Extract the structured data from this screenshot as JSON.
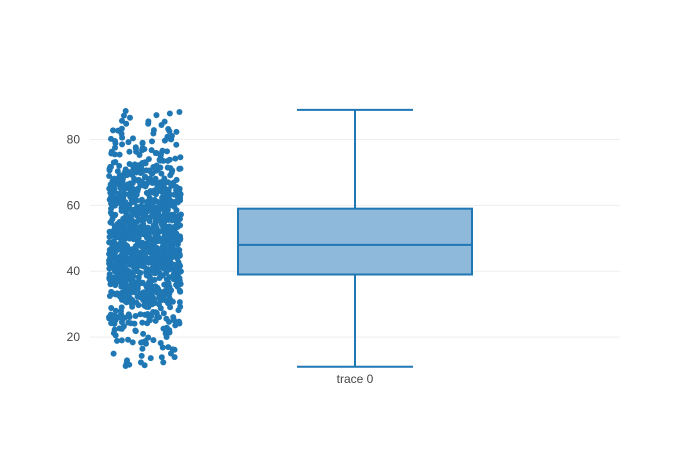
{
  "chart_data": {
    "type": "box",
    "title": "",
    "xlabel": "",
    "ylabel": "",
    "ylim": [
      10,
      92
    ],
    "yticks": [
      20,
      40,
      60,
      80
    ],
    "grid": true,
    "legend": "none",
    "categories": [
      "trace 0"
    ],
    "series": [
      {
        "name": "trace 0",
        "color": "#1f77b4",
        "fill": "#8fb9da",
        "stats": {
          "min": 11,
          "q1": 39,
          "median": 48,
          "q3": 59,
          "max": 89
        },
        "points": {
          "shown": "all",
          "count": 1200,
          "range": [
            11,
            89
          ],
          "distribution": "normal",
          "mean": 50,
          "std": 15
        }
      }
    ]
  }
}
